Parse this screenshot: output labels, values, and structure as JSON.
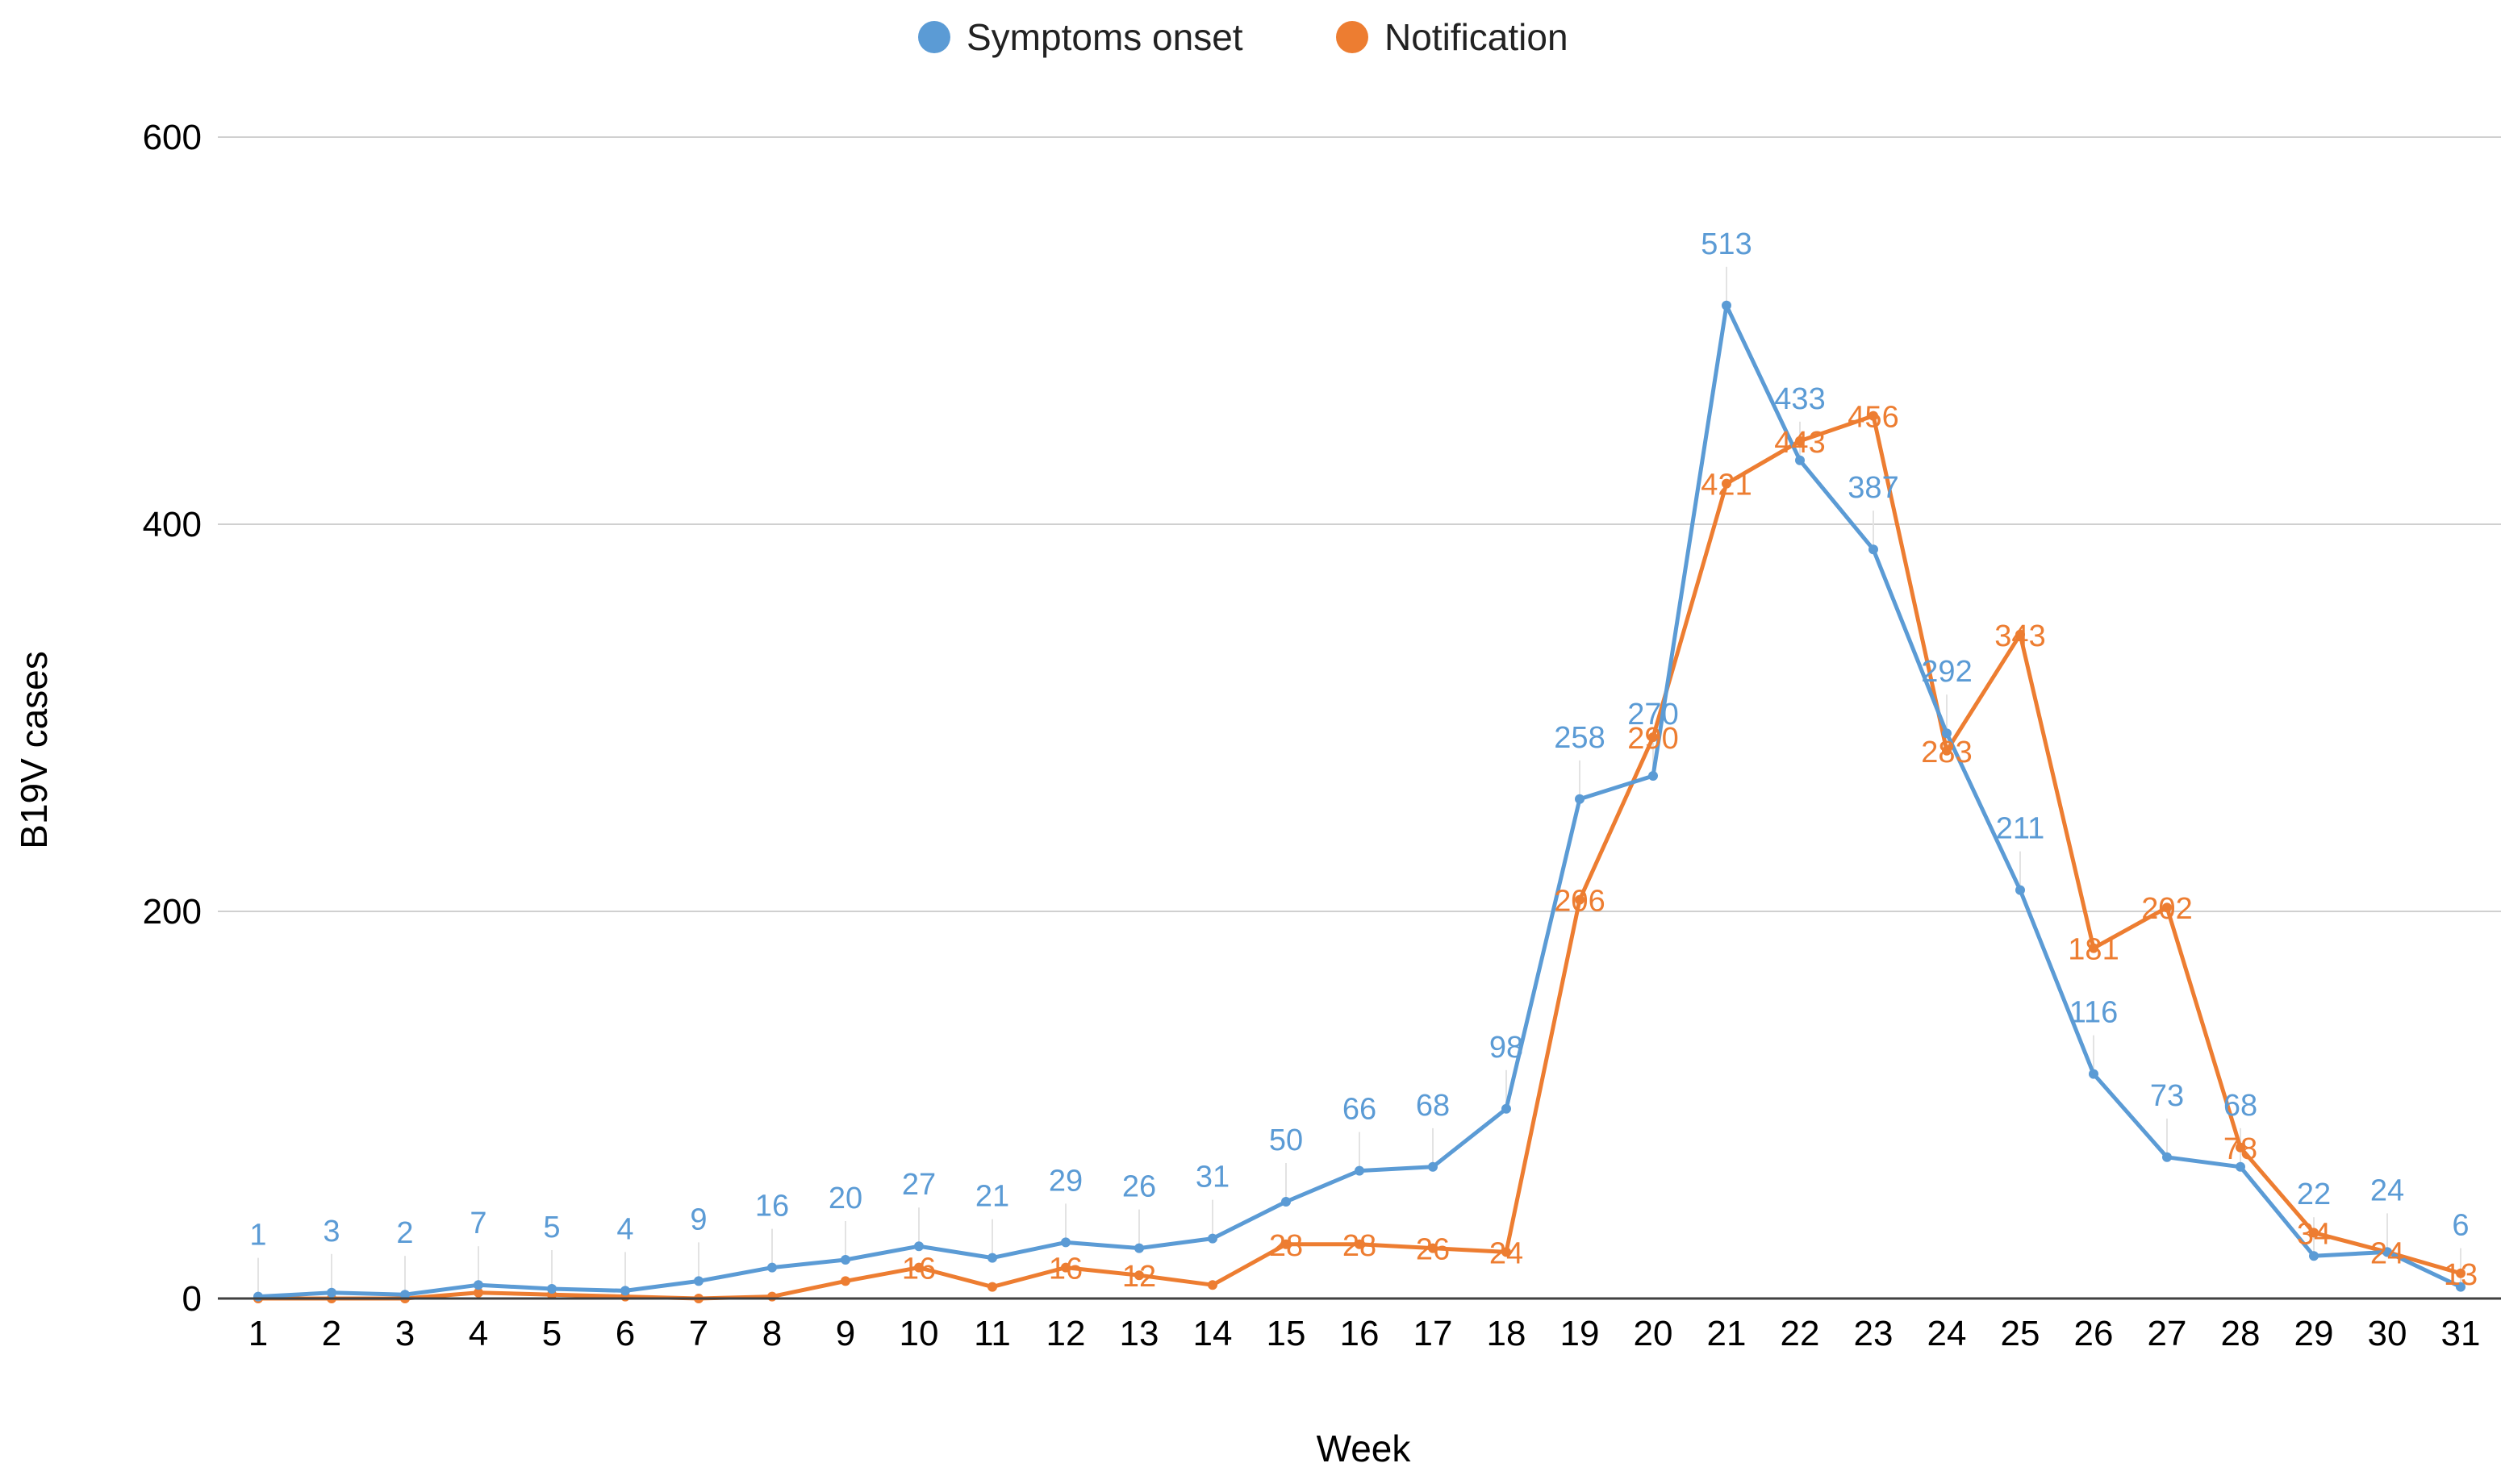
{
  "chart_data": {
    "type": "line",
    "title": "",
    "xlabel": "Week",
    "ylabel": "B19V cases",
    "ylim": [
      0,
      600
    ],
    "yticks": [
      0,
      200,
      400,
      600
    ],
    "grid": true,
    "legend_position": "top-center",
    "categories": [
      "1",
      "2",
      "3",
      "4",
      "5",
      "6",
      "7",
      "8",
      "9",
      "10",
      "11",
      "12",
      "13",
      "14",
      "15",
      "16",
      "17",
      "18",
      "19",
      "20",
      "21",
      "22",
      "23",
      "24",
      "25",
      "26",
      "27",
      "28",
      "29",
      "30",
      "31"
    ],
    "series": [
      {
        "name": "Symptoms onset",
        "color": "#5B9BD5",
        "values": [
          1,
          3,
          2,
          7,
          5,
          4,
          9,
          16,
          20,
          27,
          21,
          29,
          26,
          31,
          50,
          66,
          68,
          98,
          258,
          270,
          513,
          433,
          387,
          292,
          211,
          116,
          73,
          68,
          22,
          24,
          6
        ],
        "labels": [
          "1",
          "3",
          "2",
          "7",
          "5",
          "4",
          "9",
          "16",
          "20",
          "27",
          "21",
          "29",
          "26",
          "31",
          "50",
          "66",
          "68",
          "98",
          "258",
          "270",
          "513",
          "433",
          "387",
          "292",
          "211",
          "116",
          "73",
          "68",
          "22",
          "24",
          "6"
        ]
      },
      {
        "name": "Notification",
        "color": "#ED7D31",
        "values": [
          0,
          0,
          0,
          3,
          2,
          1,
          0,
          1,
          9,
          16,
          6,
          16,
          12,
          7,
          28,
          28,
          26,
          24,
          206,
          290,
          421,
          443,
          456,
          283,
          343,
          181,
          202,
          78,
          34,
          24,
          13
        ],
        "labels": [
          "",
          "",
          "",
          "",
          "",
          "",
          "",
          "",
          "",
          "16",
          "",
          "16",
          "12",
          "",
          "28",
          "28",
          "26",
          "24",
          "206",
          "290",
          "421",
          "443",
          "456",
          "283",
          "343",
          "181",
          "202",
          "78",
          "34",
          "24",
          "13"
        ]
      }
    ]
  }
}
